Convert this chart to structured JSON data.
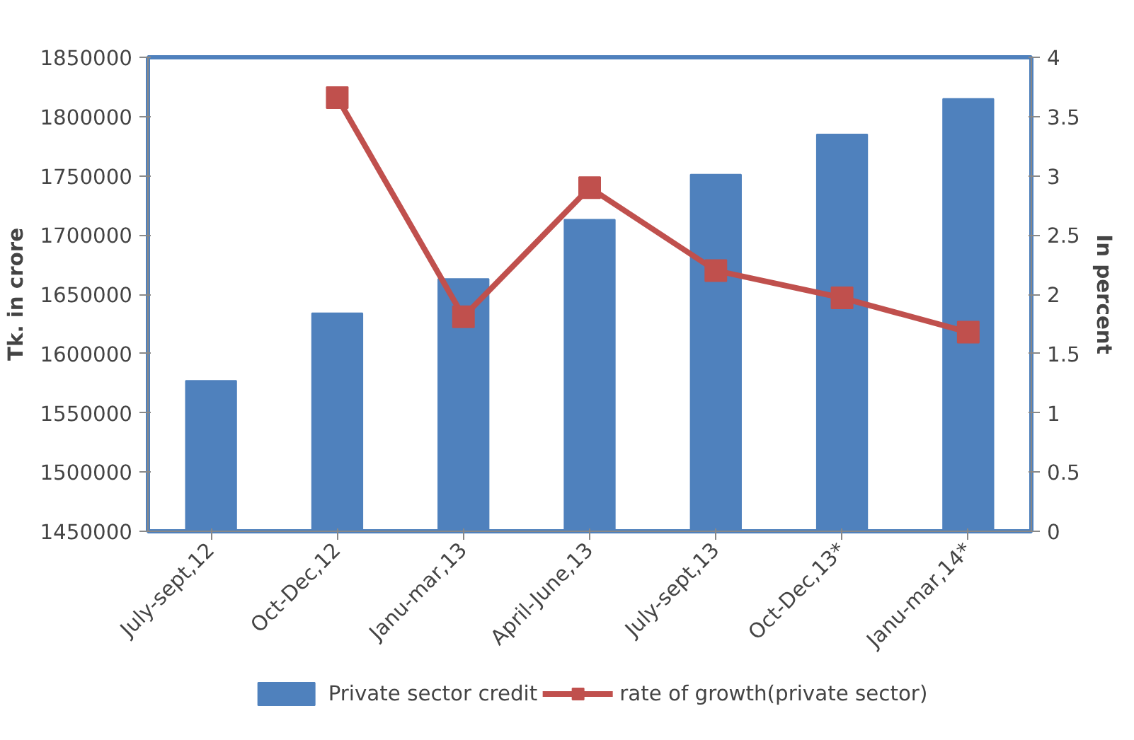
{
  "chart_data": {
    "type": "bar",
    "categories": [
      "July-sept,12",
      "Oct-Dec,12",
      "Janu-mar,13",
      "April-June,13",
      "July-sept,13",
      "Oct-Dec,13*",
      "Janu-mar,14*"
    ],
    "ylabel": "Tk. in crore",
    "y2label": "In percent",
    "ylim": [
      1450000,
      1850000
    ],
    "yticks": [
      1450000,
      1500000,
      1550000,
      1600000,
      1650000,
      1700000,
      1750000,
      1800000,
      1850000
    ],
    "y2lim": [
      0,
      4
    ],
    "y2ticks": [
      0,
      {
        "value": 0.5,
        "label": "0.5"
      },
      1,
      {
        "value": 1.5,
        "label": "1.5"
      },
      2,
      {
        "value": 2.5,
        "label": "2.5"
      },
      3,
      {
        "value": 3.5,
        "label": "3.5"
      },
      4
    ],
    "series": [
      {
        "name": "Private sector credit",
        "color": "#4f81bd",
        "values": [
          1577000,
          1634000,
          1663000,
          1713000,
          1751000,
          1785000,
          1815000
        ]
      },
      {
        "name": "rate of growth(private sector)",
        "type": "line",
        "axis": "y2",
        "marker": "square",
        "color": "#c0504d",
        "values": [
          null,
          3.66,
          1.81,
          2.9,
          2.2,
          1.97,
          1.68
        ]
      }
    ],
    "grid": false,
    "legend": "bottom"
  }
}
